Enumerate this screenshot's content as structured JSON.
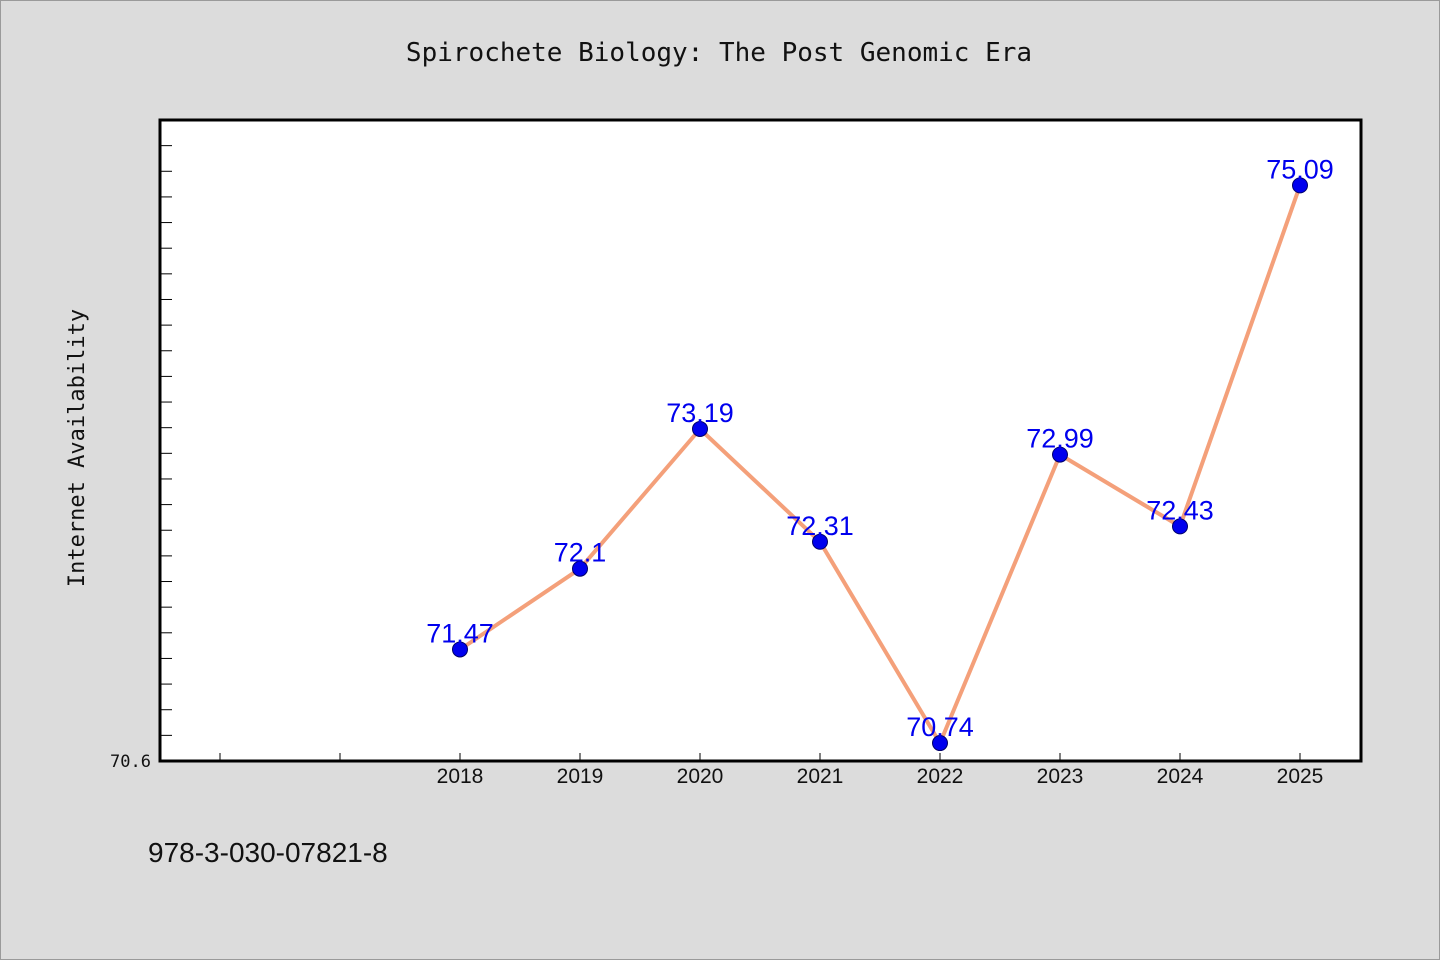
{
  "chart_data": {
    "type": "line",
    "title": "Spirochete Biology: The Post Genomic Era",
    "xlabel": "",
    "ylabel": "Internet Availability",
    "categories": [
      "2018",
      "2019",
      "2020",
      "2021",
      "2022",
      "2023",
      "2024",
      "2025"
    ],
    "series": [
      {
        "values": [
          71.47,
          72.1,
          73.19,
          72.31,
          70.74,
          72.99,
          72.43,
          75.09
        ],
        "labels": [
          "71.47",
          "72.1",
          "73.19",
          "72.31",
          "70.74",
          "72.99",
          "72.43",
          "75.09"
        ]
      }
    ],
    "ylim": [
      70.6,
      75.6
    ],
    "y_tick_label": "70.6",
    "grid": false,
    "legend": "none",
    "colors": {
      "line": "#f4a07a",
      "marker": "#0000ee",
      "data_label": "#0000ee",
      "plot_background": "#ffffff",
      "figure_background": "#dcdcdc"
    }
  },
  "footer": {
    "isbn": "978-3-030-07821-8"
  }
}
